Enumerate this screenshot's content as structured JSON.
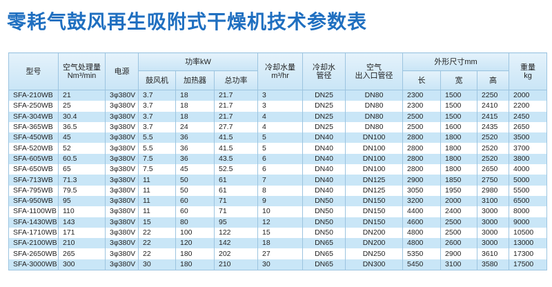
{
  "header": {
    "title": "零耗气鼓风再生吸附式干燥机技术参数表"
  },
  "table": {
    "columns": {
      "model": "型号",
      "air_flow": [
        "空气处理量",
        "Nm³/min"
      ],
      "power_supply": "电源",
      "power": {
        "label": "功率kW",
        "sub": [
          "鼓风机",
          "加热器",
          "总功率"
        ]
      },
      "cooling_water": [
        "冷却水量",
        "m³/hr"
      ],
      "cooling_pipe": [
        "冷却水",
        "管径"
      ],
      "air_pipe": [
        "空气",
        "出入口管径"
      ],
      "dimensions": {
        "label": "外形尺寸mm",
        "sub": [
          "长",
          "宽",
          "高"
        ]
      },
      "weight": [
        "重量",
        "kg"
      ]
    },
    "rows": [
      [
        "SFA-210WB",
        "21",
        "3φ380V",
        "3.7",
        "18",
        "21.7",
        "3",
        "DN25",
        "DN80",
        "2300",
        "1500",
        "2250",
        "2000"
      ],
      [
        "SFA-250WB",
        "25",
        "3φ380V",
        "3.7",
        "18",
        "21.7",
        "3",
        "DN25",
        "DN80",
        "2300",
        "1500",
        "2410",
        "2200"
      ],
      [
        "SFA-304WB",
        "30.4",
        "3φ380V",
        "3.7",
        "18",
        "21.7",
        "4",
        "DN25",
        "DN80",
        "2500",
        "1500",
        "2415",
        "2450"
      ],
      [
        "SFA-365WB",
        "36.5",
        "3φ380V",
        "3.7",
        "24",
        "27.7",
        "4",
        "DN25",
        "DN80",
        "2500",
        "1600",
        "2435",
        "2650"
      ],
      [
        "SFA-450WB",
        "45",
        "3φ380V",
        "5.5",
        "36",
        "41.5",
        "5",
        "DN40",
        "DN100",
        "2800",
        "1800",
        "2520",
        "3500"
      ],
      [
        "SFA-520WB",
        "52",
        "3φ380V",
        "5.5",
        "36",
        "41.5",
        "5",
        "DN40",
        "DN100",
        "2800",
        "1800",
        "2520",
        "3700"
      ],
      [
        "SFA-605WB",
        "60.5",
        "3φ380V",
        "7.5",
        "36",
        "43.5",
        "6",
        "DN40",
        "DN100",
        "2800",
        "1800",
        "2520",
        "3800"
      ],
      [
        "SFA-650WB",
        "65",
        "3φ380V",
        "7.5",
        "45",
        "52.5",
        "6",
        "DN40",
        "DN100",
        "2800",
        "1800",
        "2650",
        "4000"
      ],
      [
        "SFA-713WB",
        "71.3",
        "3φ380V",
        "11",
        "50",
        "61",
        "7",
        "DN40",
        "DN125",
        "2900",
        "1850",
        "2750",
        "5000"
      ],
      [
        "SFA-795WB",
        "79.5",
        "3φ380V",
        "11",
        "50",
        "61",
        "8",
        "DN40",
        "DN125",
        "3050",
        "1950",
        "2980",
        "5500"
      ],
      [
        "SFA-950WB",
        "95",
        "3φ380V",
        "11",
        "60",
        "71",
        "9",
        "DN50",
        "DN150",
        "3200",
        "2000",
        "3100",
        "6500"
      ],
      [
        "SFA-1100WB",
        "110",
        "3φ380V",
        "11",
        "60",
        "71",
        "10",
        "DN50",
        "DN150",
        "4400",
        "2400",
        "3000",
        "8000"
      ],
      [
        "SFA-1430WB",
        "143",
        "3φ380V",
        "15",
        "80",
        "95",
        "12",
        "DN50",
        "DN150",
        "4600",
        "2500",
        "3000",
        "9000"
      ],
      [
        "SFA-1710WB",
        "171",
        "3φ380V",
        "22",
        "100",
        "122",
        "15",
        "DN50",
        "DN200",
        "4800",
        "2500",
        "3000",
        "10500"
      ],
      [
        "SFA-2100WB",
        "210",
        "3φ380V",
        "22",
        "120",
        "142",
        "18",
        "DN65",
        "DN200",
        "4800",
        "2600",
        "3000",
        "13000"
      ],
      [
        "SFA-2650WB",
        "265",
        "3φ380V",
        "22",
        "180",
        "202",
        "27",
        "DN65",
        "DN250",
        "5350",
        "2900",
        "3610",
        "17300"
      ],
      [
        "SFA-3000WB",
        "300",
        "3φ380V",
        "30",
        "180",
        "210",
        "30",
        "DN65",
        "DN300",
        "5450",
        "3100",
        "3580",
        "17500"
      ]
    ]
  }
}
